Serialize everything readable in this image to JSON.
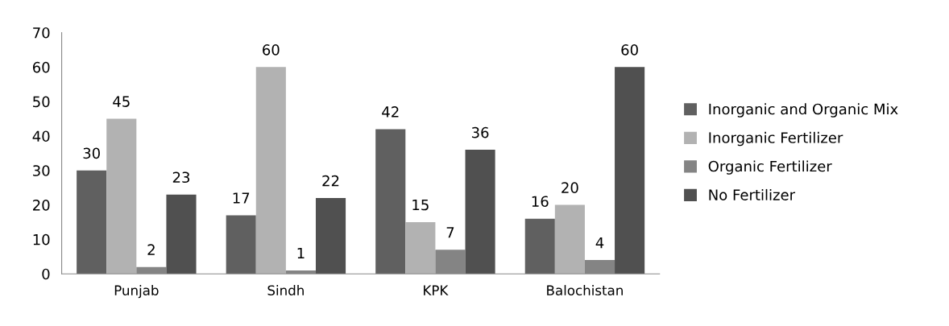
{
  "chart_data": {
    "type": "bar",
    "categories": [
      "Punjab",
      "Sindh",
      "KPK",
      "Balochistan"
    ],
    "series": [
      {
        "name": "Inorganic and Organic Mix",
        "color": "#606060",
        "values": [
          30,
          17,
          42,
          16
        ]
      },
      {
        "name": "Inorganic Fertilizer",
        "color": "#b2b2b2",
        "values": [
          45,
          60,
          15,
          20
        ]
      },
      {
        "name": "Organic Fertilizer",
        "color": "#848484",
        "values": [
          2,
          1,
          7,
          4
        ]
      },
      {
        "name": "No Fertilizer",
        "color": "#505050",
        "values": [
          23,
          22,
          36,
          60
        ]
      }
    ],
    "ylim": [
      0,
      70
    ],
    "yticks": [
      0,
      10,
      20,
      30,
      40,
      50,
      60,
      70
    ],
    "grid": false,
    "legend": "right",
    "data_labels": true
  }
}
